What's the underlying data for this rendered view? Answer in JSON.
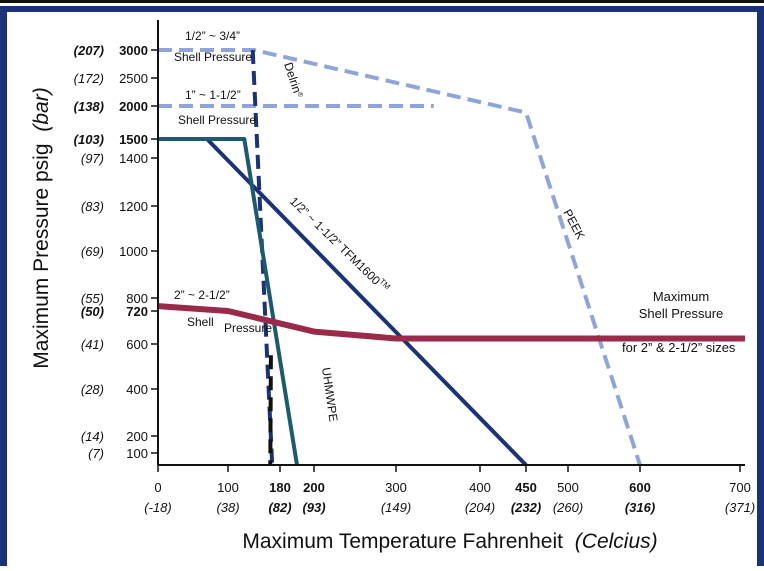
{
  "chart_data": {
    "type": "line",
    "xlabel": "Maximum Temperature Fahrenheit",
    "xlabel_suffix": "(Celcius)",
    "ylabel": "Maximum Pressure psig",
    "ylabel_suffix": "(bar)",
    "xlim": [
      0,
      720
    ],
    "ylim": [
      0,
      3200
    ],
    "x_ticks": [
      {
        "v": 0,
        "label": "0",
        "sub": "(-18)",
        "bold": false
      },
      {
        "v": 100,
        "label": "100",
        "sub": "(38)",
        "bold": false
      },
      {
        "v": 180,
        "label": "180",
        "sub": "(82)",
        "bold": true
      },
      {
        "v": 200,
        "label": "200",
        "sub": "(93)",
        "bold": true
      },
      {
        "v": 300,
        "label": "300",
        "sub": "(149)",
        "bold": false
      },
      {
        "v": 400,
        "label": "400",
        "sub": "(204)",
        "bold": false
      },
      {
        "v": 450,
        "label": "450",
        "sub": "(232)",
        "bold": true
      },
      {
        "v": 500,
        "label": "500",
        "sub": "(260)",
        "bold": false
      },
      {
        "v": 600,
        "label": "600",
        "sub": "(316)",
        "bold": true
      },
      {
        "v": 700,
        "label": "700",
        "sub": "(371)",
        "bold": false
      }
    ],
    "y_ticks": [
      {
        "v": 3000,
        "label": "3000",
        "sub": "(207)",
        "bold": true
      },
      {
        "v": 2500,
        "label": "2500",
        "sub": "(172)",
        "bold": false
      },
      {
        "v": 2000,
        "label": "2000",
        "sub": "(138)",
        "bold": true
      },
      {
        "v": 1500,
        "label": "1500",
        "sub": "(103)",
        "bold": true
      },
      {
        "v": 1400,
        "label": "1400",
        "sub": "(97)",
        "bold": false
      },
      {
        "v": 1200,
        "label": "1200",
        "sub": "(83)",
        "bold": false
      },
      {
        "v": 1000,
        "label": "1000",
        "sub": "(69)",
        "bold": false
      },
      {
        "v": 800,
        "label": "800",
        "sub": "(55)",
        "bold": false
      },
      {
        "v": 720,
        "label": "720",
        "sub": "(50)",
        "bold": true
      },
      {
        "v": 600,
        "label": "600",
        "sub": "(41)",
        "bold": false
      },
      {
        "v": 400,
        "label": "400",
        "sub": "(28)",
        "bold": false
      },
      {
        "v": 200,
        "label": "200",
        "sub": "(14)",
        "bold": false
      },
      {
        "v": 100,
        "label": "100",
        "sub": "(7)",
        "bold": false
      }
    ],
    "series": [
      {
        "key": "peek",
        "color": "#8fa5d9",
        "dash": true,
        "points": [
          [
            0,
            3000
          ],
          [
            140,
            3000
          ],
          [
            450,
            1900
          ],
          [
            600,
            0
          ]
        ]
      },
      {
        "key": "shell_small",
        "color": "#8fa5d9",
        "dash": true,
        "points": [
          [
            0,
            2000
          ],
          [
            345,
            2000
          ]
        ]
      },
      {
        "key": "delrin",
        "color": "#1a3277",
        "dash": true,
        "points": [
          [
            138,
            3000
          ],
          [
            168,
            0
          ]
        ]
      },
      {
        "key": "uhmwpe_black",
        "color": "#111111",
        "dash": true,
        "points": [
          [
            166,
            550
          ],
          [
            165,
            0
          ]
        ]
      },
      {
        "key": "tfm",
        "color": "#1a3277",
        "dash": false,
        "points": [
          [
            0,
            1500
          ],
          [
            70,
            1500
          ],
          [
            450,
            0
          ]
        ]
      },
      {
        "key": "uhmwpe",
        "color": "#1e5a6e",
        "dash": false,
        "points": [
          [
            0,
            1500
          ],
          [
            125,
            1500
          ],
          [
            190,
            0
          ]
        ]
      },
      {
        "key": "shell_large",
        "color": "#9a2a4a",
        "dash": false,
        "points": [
          [
            0,
            750
          ],
          [
            100,
            720
          ],
          [
            200,
            645
          ],
          [
            300,
            620
          ],
          [
            720,
            620
          ]
        ]
      }
    ],
    "annotations": {
      "shell_small_top": "1/2” ~ 3/4”",
      "shell_small_top_2": "Shell Pressure",
      "shell_mid": "1” ~ 1-1/2”",
      "shell_mid_2": "Shell Pressure",
      "shell_large": "2” ~ 2-1/2”",
      "shell_large_2": "Shell",
      "shell_large_3": "Pressure",
      "delrin": "Delrin",
      "delrin_reg": "®",
      "tfm": "1/2” ~ 1-1/2” TFM1600",
      "tfm_tm": "TM",
      "peek": "PEEK",
      "uhmwpe": "UHMWPE",
      "max_shell_1": "Maximum",
      "max_shell_2": "Shell Pressure",
      "max_shell_3": "for 2” & 2-1/2” sizes"
    }
  }
}
